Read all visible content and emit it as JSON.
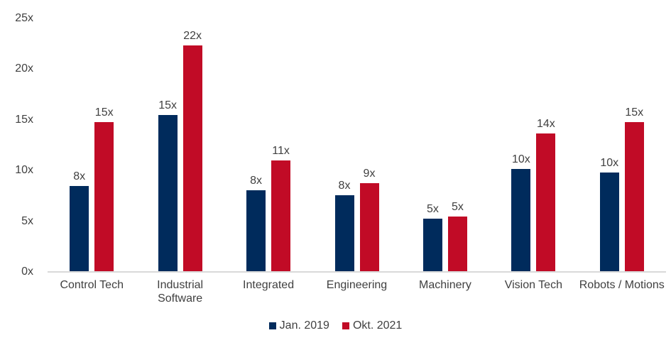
{
  "chart_data": {
    "type": "bar",
    "title": "",
    "categories": [
      "Control Tech",
      "Industrial Software",
      "Integrated",
      "Engineering",
      "Machinery",
      "Vision Tech",
      "Robots / Motions"
    ],
    "series": [
      {
        "name": "Jan. 2019",
        "color": "#002B5C",
        "bar_labels": [
          "8x",
          "15x",
          "8x",
          "8x",
          "5x",
          "10x",
          "10x"
        ],
        "values": [
          8.4,
          15.4,
          8.0,
          7.5,
          5.2,
          10.1,
          9.7
        ]
      },
      {
        "name": "Okt. 2021",
        "color": "#C10B26",
        "bar_labels": [
          "15x",
          "22x",
          "11x",
          "9x",
          "5x",
          "14x",
          "15x"
        ],
        "values": [
          14.7,
          22.3,
          10.9,
          8.7,
          5.4,
          13.6,
          14.7
        ]
      }
    ],
    "xlabel": "",
    "ylabel": "",
    "y_axis": {
      "min": 0,
      "max": 25,
      "tick_values": [
        0,
        5,
        10,
        15,
        20,
        25
      ],
      "tick_labels": [
        "0x",
        "5x",
        "10x",
        "15x",
        "20x",
        "25x"
      ],
      "grid": false
    },
    "legend": {
      "position": "bottom",
      "entries": [
        {
          "label": "Jan. 2019",
          "color": "#002B5C"
        },
        {
          "label": "Okt. 2021",
          "color": "#C10B26"
        }
      ]
    }
  },
  "colors": {
    "background": "#FFFFFF",
    "axis_line": "#D9D9D9",
    "text": "#404040",
    "series_navy": "#002B5C",
    "series_red": "#C10B26"
  }
}
